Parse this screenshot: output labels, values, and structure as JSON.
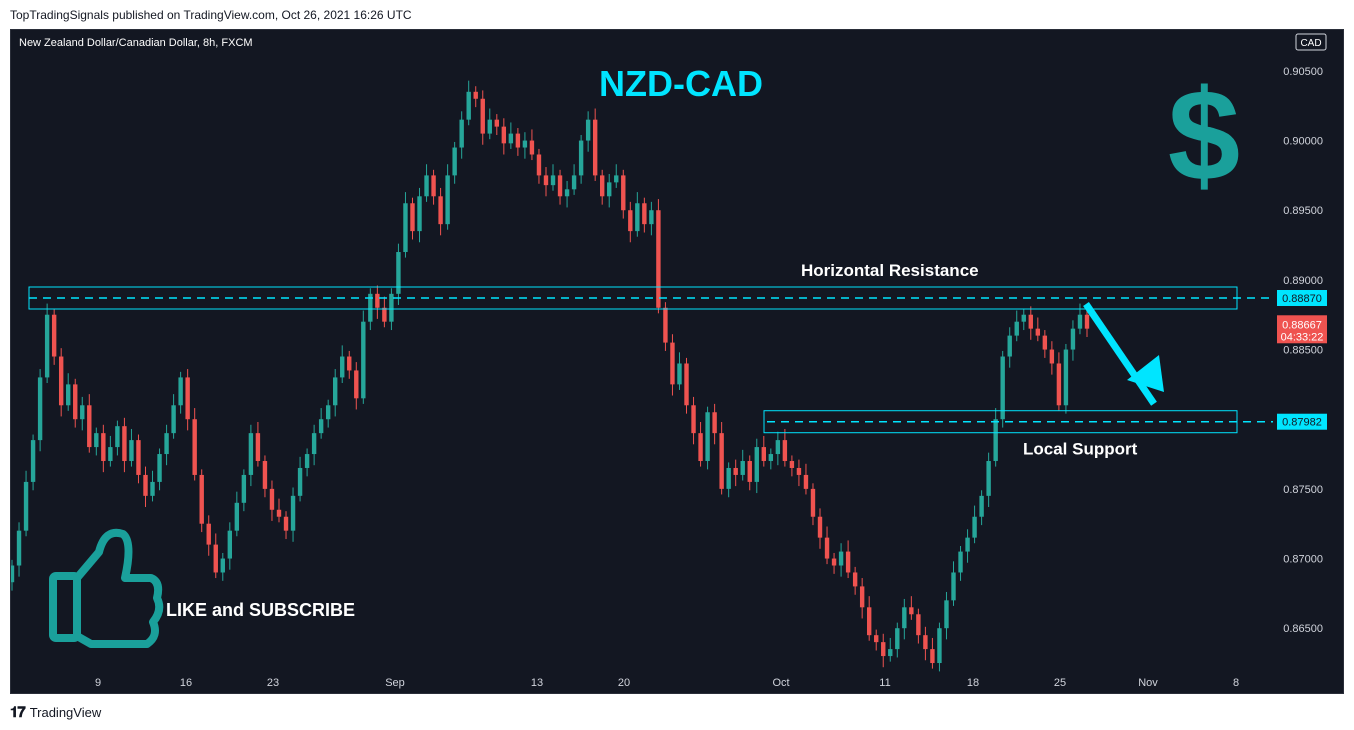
{
  "header": {
    "published_by": "TopTradingSignals published on TradingView.com, Oct 26, 2021 16:26 UTC"
  },
  "footer": {
    "brand": "TradingView",
    "logo_glyph": "𝟏𝟕"
  },
  "colors": {
    "background": "#131722",
    "up": "#26a69a",
    "down": "#ef5350",
    "accent": "#00e5ff",
    "text": "#ffffff",
    "axis_text": "#d1d4dc"
  },
  "chart_data": {
    "type": "candlestick",
    "title": "NZD-CAD",
    "symbol_label": "New Zealand Dollar/Canadian Dollar, 8h, FXCM",
    "currency": "CAD",
    "ylim": [
      0.862,
      0.9065
    ],
    "y_ticks": [
      "0.90500",
      "0.90000",
      "0.89500",
      "0.89000",
      "0.88500",
      "0.87500",
      "0.87000",
      "0.86500"
    ],
    "x_ticks": [
      "9",
      "16",
      "23",
      "Sep",
      "13",
      "20",
      "Oct",
      "11",
      "18",
      "25",
      "Nov",
      "8"
    ],
    "last_price": "0.88667",
    "countdown": "04:33:22",
    "path_closes": [
      0.8695,
      0.872,
      0.8755,
      0.8785,
      0.883,
      0.8875,
      0.8845,
      0.881,
      0.8825,
      0.88,
      0.881,
      0.878,
      0.879,
      0.877,
      0.878,
      0.8795,
      0.877,
      0.8785,
      0.876,
      0.8745,
      0.8755,
      0.8775,
      0.879,
      0.881,
      0.883,
      0.88,
      0.876,
      0.8725,
      0.871,
      0.869,
      0.87,
      0.872,
      0.874,
      0.876,
      0.879,
      0.877,
      0.875,
      0.8735,
      0.873,
      0.872,
      0.8745,
      0.8765,
      0.8775,
      0.879,
      0.88,
      0.881,
      0.883,
      0.8845,
      0.8835,
      0.8815,
      0.887,
      0.889,
      0.888,
      0.887,
      0.889,
      0.892,
      0.8955,
      0.8935,
      0.896,
      0.8975,
      0.896,
      0.894,
      0.8975,
      0.8995,
      0.9015,
      0.9035,
      0.903,
      0.9005,
      0.9015,
      0.901,
      0.8998,
      0.9005,
      0.8995,
      0.9,
      0.899,
      0.8975,
      0.8968,
      0.8975,
      0.896,
      0.8965,
      0.8975,
      0.9,
      0.9015,
      0.8975,
      0.896,
      0.897,
      0.8975,
      0.895,
      0.8935,
      0.8955,
      0.894,
      0.895,
      0.888,
      0.8855,
      0.8825,
      0.884,
      0.881,
      0.879,
      0.877,
      0.8805,
      0.879,
      0.875,
      0.8765,
      0.876,
      0.877,
      0.8755,
      0.878,
      0.877,
      0.8775,
      0.8785,
      0.877,
      0.8765,
      0.876,
      0.875,
      0.873,
      0.8715,
      0.87,
      0.8695,
      0.8705,
      0.869,
      0.868,
      0.8665,
      0.8645,
      0.864,
      0.863,
      0.8635,
      0.865,
      0.8665,
      0.866,
      0.8645,
      0.8635,
      0.8625,
      0.865,
      0.867,
      0.869,
      0.8705,
      0.8715,
      0.873,
      0.8745,
      0.877,
      0.88,
      0.8845,
      0.886,
      0.887,
      0.8875,
      0.8865,
      0.886,
      0.885,
      0.884,
      0.881,
      0.885,
      0.8865,
      0.8875,
      0.8865
    ],
    "annotations": {
      "resistance_label": "Horizontal Resistance",
      "resistance_level": "0.88870",
      "support_label": "Local Support",
      "support_level": "0.87982",
      "promo_text": "LIKE and SUBSCRIBE",
      "dollar_glyph": "$"
    }
  }
}
